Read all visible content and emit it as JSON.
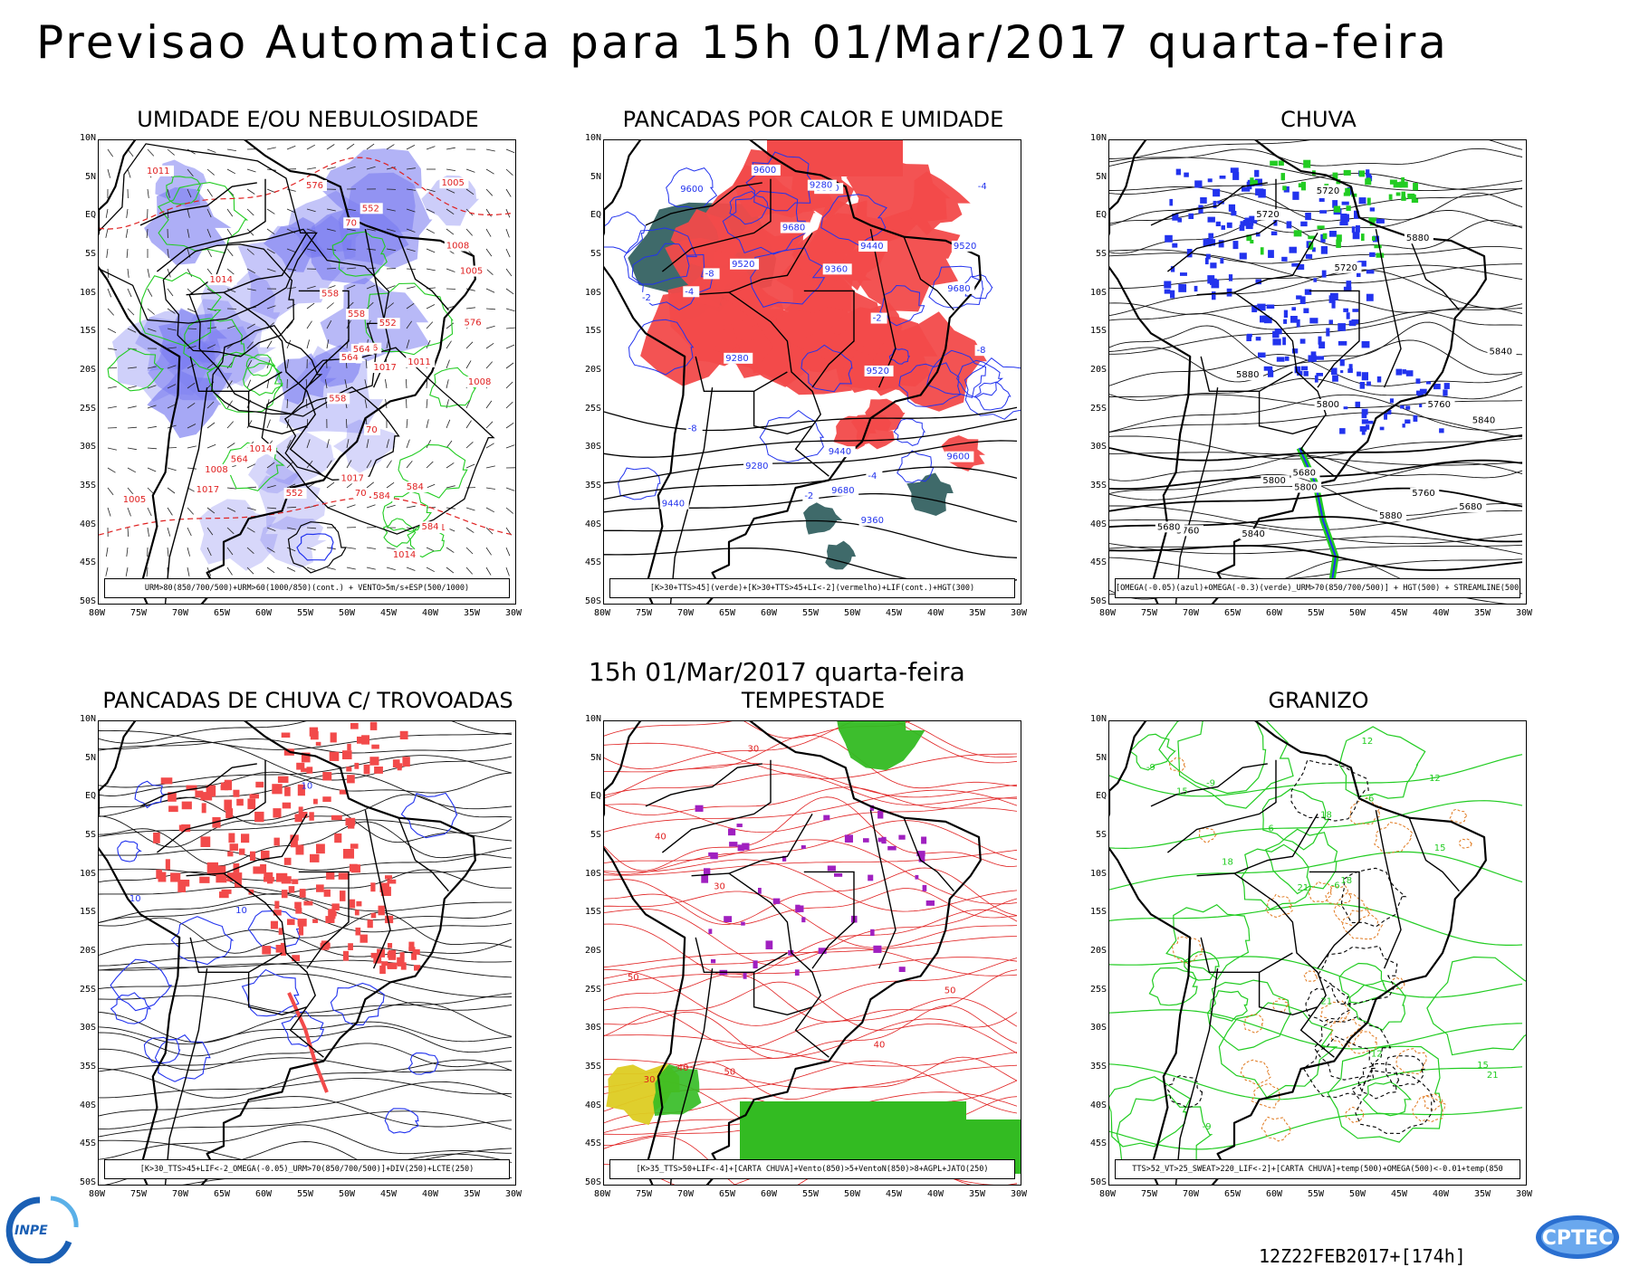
{
  "header": {
    "title": "Previsao Automatica  para 15h 01/Mar/2017 quarta-feira",
    "mid_title": "15h 01/Mar/2017 quarta-feira"
  },
  "axes": {
    "lat_labels": [
      "10N",
      "5N",
      "EQ",
      "5S",
      "10S",
      "15S",
      "20S",
      "25S",
      "30S",
      "35S",
      "40S",
      "45S",
      "50S"
    ],
    "lon_labels": [
      "80W",
      "75W",
      "70W",
      "65W",
      "60W",
      "55W",
      "50W",
      "45W",
      "40W",
      "35W",
      "30W"
    ]
  },
  "panels": [
    {
      "id": "umidade",
      "title": "UMIDADE E/OU NEBULOSIDADE",
      "legend": "URM>80(850/700/500)+URM>60(1000/850)(cont.) + VENTO>5m/s+ESP(500/1000)",
      "labels": [
        "576",
        "1008",
        "1011",
        "70",
        "1005",
        "1014",
        "1017",
        "584",
        "558",
        "552",
        "564"
      ]
    },
    {
      "id": "pancadas-calor",
      "title": "PANCADAS POR CALOR E UMIDADE",
      "legend": "[K>30+TTS>45](verde)+[K>30+TTS>45+LI<-2](vermelho)+LIF(cont.)+HGT(300)",
      "labels": [
        "-2",
        "-4",
        "-8",
        "9680",
        "9600",
        "9520",
        "9440",
        "9360",
        "9280"
      ]
    },
    {
      "id": "chuva",
      "title": "CHUVA",
      "legend": "[OMEGA(-0.05)(azul)+OMEGA(-0.3)(verde)_URM>70(850/700/500)] + HGT(500) + STREAMLINE(500)",
      "labels": [
        "5840",
        "5800",
        "5760",
        "5720",
        "5680",
        "5880"
      ]
    },
    {
      "id": "pancadas-trovoadas",
      "title": "PANCADAS DE CHUVA C/ TROVOADAS",
      "legend": "[K>30_TTS>45+LIF<-2_OMEGA(-0.05)_URM>70(850/700/500)]+DIV(250)+LCTE(250)",
      "labels": [
        "10"
      ]
    },
    {
      "id": "tempestade",
      "title": "TEMPESTADE",
      "legend": "[K>35_TTS>50+LIF<-4]+[CARTA CHUVA]+Vento(850)>5+VentoN(850)>8+AGPL+JATO(250)",
      "labels": [
        "50",
        "40",
        "30"
      ]
    },
    {
      "id": "granizo",
      "title": "GRANIZO",
      "legend": "TTS>52_VT>25_SWEAT>220_LIF<-2]+[CARTA CHUVA]+temp(500)+OMEGA(500)<-0.01+temp(850",
      "labels": [
        "18",
        "15",
        "12",
        "21",
        "-9",
        "-6"
      ]
    }
  ],
  "footer": {
    "run_stamp": "12Z22FEB2017+[174h]",
    "logo_left": "INPE",
    "logo_right": "CPTEC"
  },
  "colors": {
    "humidity_fill": "#7a7cf0",
    "instability_red": "#f24a4a",
    "instability_green": "#2a5a5a",
    "contour_blue": "#2233ee",
    "contour_green": "#22cc22",
    "contour_red": "#e02020",
    "contour_orange": "#e07a20",
    "storm_purple": "#a020c0",
    "storm_green": "#33bb22",
    "storm_yellow": "#ddcc22"
  }
}
